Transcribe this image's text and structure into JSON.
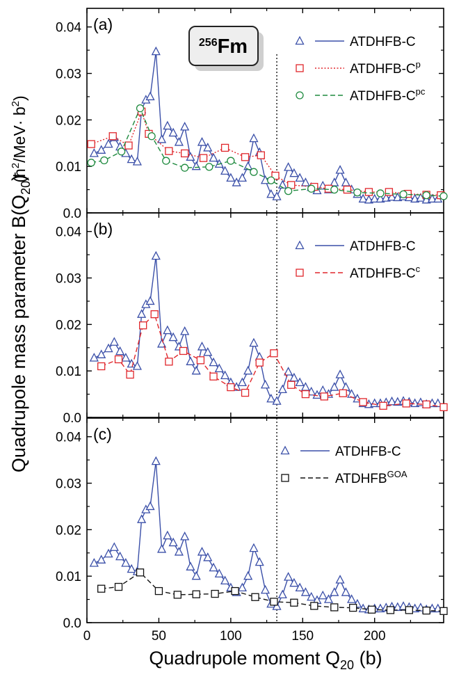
{
  "chart_data": {
    "type": "line",
    "xlabel": "Quadrupole moment Q",
    "xlabel_sub": "20",
    "xlabel_unit": " (b)",
    "ylabel": "Quadrupole mass parameter B(Q",
    "ylabel_sub": "20",
    "ylabel_close": ")",
    "ylabel_unit_pre": "(ħ",
    "ylabel_unit_sup1": "2",
    "ylabel_unit_mid": "/MeV· b",
    "ylabel_unit_sup2": "2",
    "ylabel_unit_post": ")",
    "xlim": [
      0,
      248
    ],
    "ylim": [
      0,
      0.044
    ],
    "x_ticks": [
      0,
      50,
      100,
      150,
      200
    ],
    "y_ticks": [
      0.0,
      0.01,
      0.02,
      0.03,
      0.04
    ],
    "y_tick_labels": [
      "0.0",
      "0.01",
      "0.02",
      "0.03",
      "0.04"
    ],
    "vline_x": 132,
    "nucleus_label": {
      "mass": "256",
      "symbol": "Fm"
    },
    "panels": [
      {
        "label": "(a)",
        "series": [
          {
            "name": "ATDHFB-C",
            "name_sup": "",
            "marker": "triangle",
            "color": "#3a4fa8",
            "dash": "solid",
            "x": [
              5,
              10,
              15,
              19,
              23,
              27,
              31,
              35,
              38,
              41,
              44,
              48,
              52,
              56,
              60,
              64,
              68,
              72,
              76,
              80,
              84,
              88,
              92,
              96,
              100,
              104,
              108,
              112,
              116,
              120,
              124,
              128,
              132,
              136,
              140,
              144,
              148,
              152,
              156,
              160,
              164,
              168,
              172,
              176,
              180,
              184,
              188,
              192,
              196,
              200,
              204,
              208,
              212,
              216,
              220,
              224,
              228,
              232,
              236,
              240,
              244
            ],
            "y": [
              0.0128,
              0.0135,
              0.0148,
              0.0162,
              0.0142,
              0.0128,
              0.0115,
              0.011,
              0.0222,
              0.0243,
              0.025,
              0.0347,
              0.0158,
              0.0187,
              0.0172,
              0.0152,
              0.0185,
              0.012,
              0.01,
              0.0152,
              0.014,
              0.0118,
              0.0105,
              0.009,
              0.0075,
              0.0065,
              0.0075,
              0.01,
              0.016,
              0.013,
              0.007,
              0.004,
              0.0035,
              0.006,
              0.0098,
              0.0085,
              0.0075,
              0.0065,
              0.0055,
              0.0048,
              0.0058,
              0.005,
              0.0065,
              0.0092,
              0.0065,
              0.005,
              0.004,
              0.003,
              0.0028,
              0.003,
              0.003,
              0.0032,
              0.0034,
              0.0033,
              0.0035,
              0.0033,
              0.003,
              0.0032,
              0.0028,
              0.003,
              0.003
            ]
          },
          {
            "name": "ATDHFB-C",
            "name_sup": "p",
            "marker": "square",
            "color": "#e0262b",
            "dash": "dotted",
            "x": [
              3,
              18,
              29,
              38,
              43,
              57,
              68,
              81,
              96,
              110,
              121,
              131,
              142,
              158,
              168,
              181,
              196,
              210,
              223,
              236,
              246
            ],
            "y": [
              0.0148,
              0.0165,
              0.0145,
              0.0218,
              0.017,
              0.0133,
              0.0128,
              0.0118,
              0.014,
              0.012,
              0.0124,
              0.008,
              0.006,
              0.0056,
              0.0052,
              0.005,
              0.0045,
              0.0045,
              0.0041,
              0.0039,
              0.0038
            ]
          },
          {
            "name": "ATDHFB-C",
            "name_sup": "pc",
            "marker": "circle",
            "color": "#1e8a3e",
            "dash": "dashed",
            "x": [
              3,
              12,
              24,
              37,
              45,
              55,
              68,
              85,
              100,
              116,
              128,
              140,
              156,
              172,
              188,
              204,
              220,
              236,
              248
            ],
            "y": [
              0.0108,
              0.0113,
              0.0132,
              0.0225,
              0.0165,
              0.0112,
              0.0097,
              0.0099,
              0.0112,
              0.0088,
              0.007,
              0.0047,
              0.0052,
              0.005,
              0.0044,
              0.0042,
              0.004,
              0.0038,
              0.0036
            ]
          }
        ]
      },
      {
        "label": "(b)",
        "series": [
          {
            "name": "ATDHFB-C",
            "name_sup": "",
            "marker": "triangle",
            "color": "#3a4fa8",
            "dash": "solid",
            "x": [
              5,
              10,
              15,
              19,
              23,
              27,
              31,
              35,
              38,
              41,
              44,
              48,
              52,
              56,
              60,
              64,
              68,
              72,
              76,
              80,
              84,
              88,
              92,
              96,
              100,
              104,
              108,
              112,
              116,
              120,
              124,
              128,
              132,
              136,
              140,
              144,
              148,
              152,
              156,
              160,
              164,
              168,
              172,
              176,
              180,
              184,
              188,
              192,
              196,
              200,
              204,
              208,
              212,
              216,
              220,
              224,
              228,
              232,
              236,
              240,
              244
            ],
            "y": [
              0.0128,
              0.0135,
              0.0148,
              0.0162,
              0.0142,
              0.0128,
              0.0115,
              0.011,
              0.0222,
              0.0243,
              0.025,
              0.0347,
              0.0158,
              0.0187,
              0.0172,
              0.0152,
              0.0185,
              0.012,
              0.01,
              0.0152,
              0.014,
              0.0118,
              0.0105,
              0.009,
              0.0075,
              0.0065,
              0.0075,
              0.01,
              0.016,
              0.013,
              0.007,
              0.004,
              0.0035,
              0.006,
              0.0098,
              0.0085,
              0.0075,
              0.0065,
              0.0055,
              0.0048,
              0.0058,
              0.005,
              0.0065,
              0.0092,
              0.0065,
              0.005,
              0.004,
              0.003,
              0.0028,
              0.003,
              0.003,
              0.0032,
              0.0034,
              0.0033,
              0.0035,
              0.0033,
              0.003,
              0.0032,
              0.0028,
              0.003,
              0.003
            ]
          },
          {
            "name": "ATDHFB-C",
            "name_sup": "c",
            "marker": "square",
            "color": "#e0262b",
            "dash": "dashed",
            "x": [
              10,
              22,
              30,
              39,
              47,
              57,
              67,
              79,
              88,
              100,
              110,
              120,
              130,
              142,
              152,
              165,
              178,
              192,
              206,
              222,
              236,
              248
            ],
            "y": [
              0.011,
              0.0125,
              0.0092,
              0.0198,
              0.0222,
              0.012,
              0.0143,
              0.0123,
              0.0088,
              0.0065,
              0.0053,
              0.0118,
              0.0138,
              0.007,
              0.005,
              0.0045,
              0.0052,
              0.0033,
              0.0025,
              0.003,
              0.0028,
              0.0022
            ]
          }
        ]
      },
      {
        "label": "(c)",
        "series": [
          {
            "name": "ATDHFB-C",
            "name_sup": "",
            "marker": "triangle",
            "color": "#3a4fa8",
            "dash": "solid",
            "x": [
              5,
              10,
              15,
              19,
              23,
              27,
              31,
              35,
              38,
              41,
              44,
              48,
              52,
              56,
              60,
              64,
              68,
              72,
              76,
              80,
              84,
              88,
              92,
              96,
              100,
              104,
              108,
              112,
              116,
              120,
              124,
              128,
              132,
              136,
              140,
              144,
              148,
              152,
              156,
              160,
              164,
              168,
              172,
              176,
              180,
              184,
              188,
              192,
              196,
              200,
              204,
              208,
              212,
              216,
              220,
              224,
              228,
              232,
              236,
              240,
              244
            ],
            "y": [
              0.0128,
              0.0135,
              0.0148,
              0.0162,
              0.0142,
              0.0128,
              0.0115,
              0.011,
              0.0222,
              0.0243,
              0.025,
              0.0347,
              0.0158,
              0.0187,
              0.0172,
              0.0152,
              0.0185,
              0.012,
              0.01,
              0.0152,
              0.014,
              0.0118,
              0.0105,
              0.009,
              0.0075,
              0.0065,
              0.0075,
              0.01,
              0.016,
              0.013,
              0.007,
              0.004,
              0.0035,
              0.006,
              0.0098,
              0.0085,
              0.0075,
              0.0065,
              0.0055,
              0.0048,
              0.0058,
              0.005,
              0.0065,
              0.0092,
              0.0065,
              0.005,
              0.004,
              0.003,
              0.0028,
              0.003,
              0.003,
              0.0032,
              0.0034,
              0.0033,
              0.0035,
              0.0033,
              0.003,
              0.0032,
              0.0028,
              0.003,
              0.003
            ]
          },
          {
            "name": "ATDHFB",
            "name_sup": "GOA",
            "marker": "square",
            "color": "#111111",
            "dash": "dashed",
            "x": [
              10,
              22,
              37,
              50,
              63,
              76,
              89,
              103,
              117,
              130,
              144,
              158,
              172,
              185,
              198,
              211,
              224,
              236,
              248
            ],
            "y": [
              0.0073,
              0.0077,
              0.0108,
              0.0068,
              0.006,
              0.0061,
              0.0062,
              0.0068,
              0.0055,
              0.0045,
              0.0043,
              0.0036,
              0.0033,
              0.0032,
              0.0028,
              0.0027,
              0.0027,
              0.0026,
              0.0025
            ]
          }
        ]
      }
    ]
  }
}
